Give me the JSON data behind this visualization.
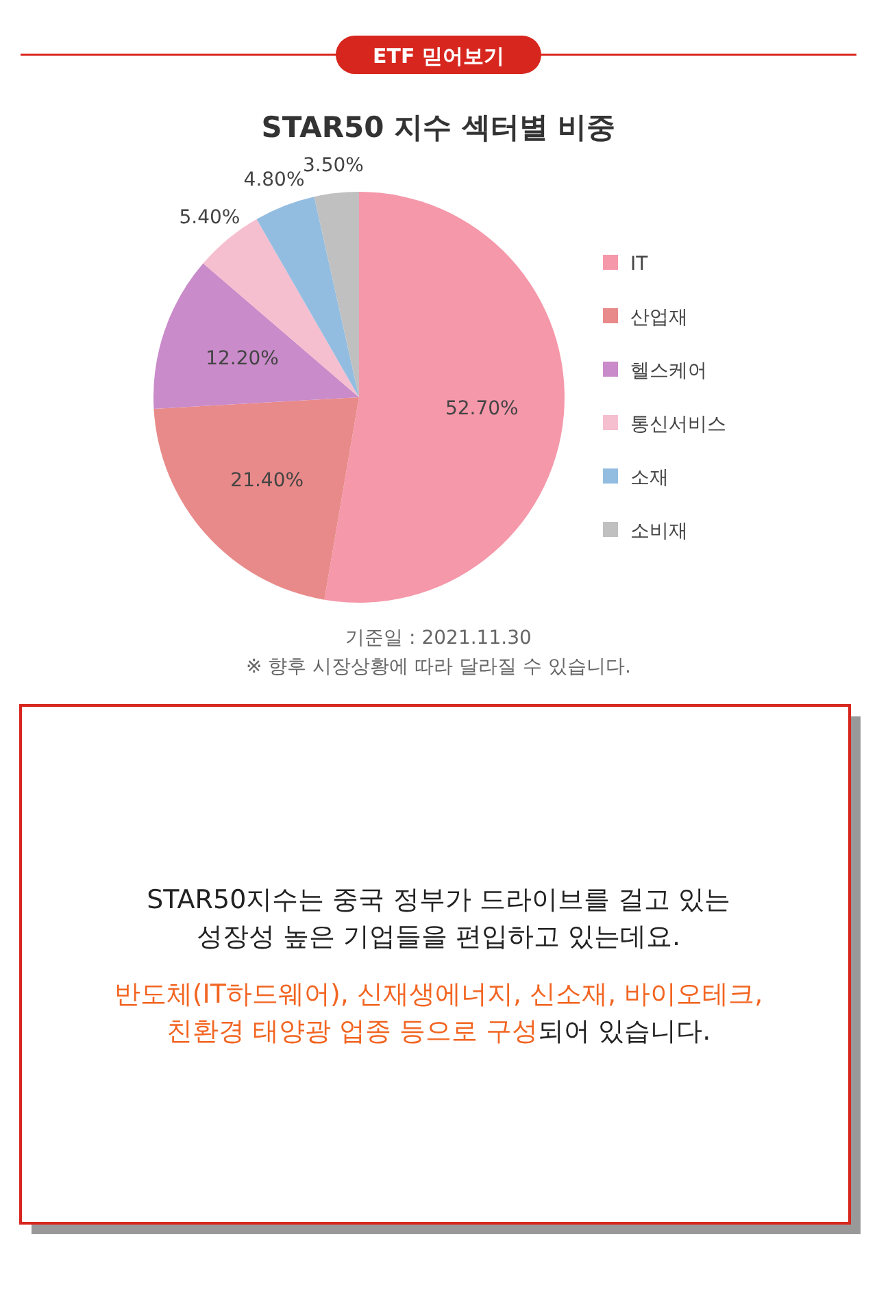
{
  "chart_data": [
    {
      "type": "pie",
      "title": "STAR50 지수 섹터별 비중",
      "categories": [
        "IT",
        "산업재",
        "헬스케어",
        "통신서비스",
        "소재",
        "소비재"
      ],
      "values": [
        52.7,
        21.4,
        12.2,
        5.4,
        4.8,
        3.5
      ],
      "value_labels": [
        "52.70%",
        "21.40%",
        "12.20%",
        "5.40%",
        "4.80%",
        "3.50%"
      ],
      "colors": [
        "#f598aa",
        "#e98a8a",
        "#c98bc9",
        "#f5bfcf",
        "#93bde0",
        "#c0c0c0"
      ],
      "legend": "right",
      "subtitle": "ETF 믿어보기",
      "annotations": [
        "기준일 : 2021.11.30",
        "※ 향후 시장상황에 따라 달라질 수 있습니다."
      ]
    },
    {
      "type": "other",
      "annotations": [
        "STAR50지수는 중국 정부가 드라이브를 걸고 있는",
        "성장성 높은 기업들을 편입하고 있는데요.",
        "반도체(IT하드웨어), 신재생에너지, 신소재, 바이오테크,",
        "친환경 태양광 업종 등으로 구성",
        "되어 있습니다."
      ]
    }
  ]
}
